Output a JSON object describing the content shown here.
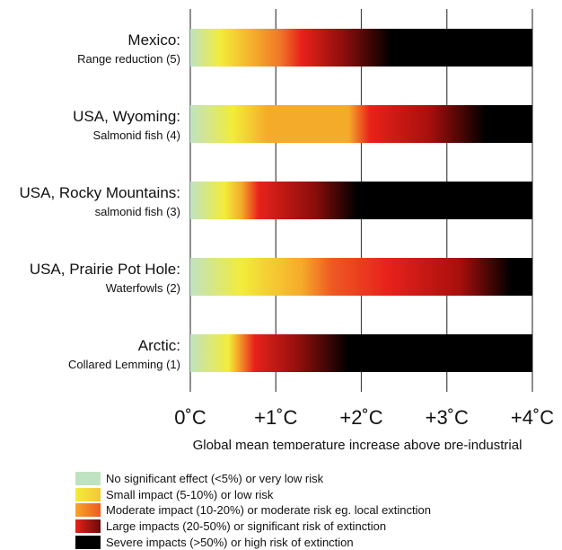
{
  "chart_data": {
    "type": "bar",
    "orientation": "horizontal",
    "title": "",
    "xlabel": "Global mean temperature increase above pre-industrial",
    "xlim": [
      0,
      4
    ],
    "xticks": [
      0,
      1,
      2,
      3,
      4
    ],
    "xtick_labels": [
      "0˚C",
      "+1˚C",
      "+2˚C",
      "+3˚C",
      "+4˚C"
    ],
    "grid": "vertical",
    "categories": [
      {
        "title": "Mexico:",
        "subtitle": "Range reduction (5)"
      },
      {
        "title": "USA, Wyoming:",
        "subtitle": "Salmonid fish (4)"
      },
      {
        "title": "USA, Rocky Mountains:",
        "subtitle": "salmonid fish (3)"
      },
      {
        "title": "USA, Prairie Pot Hole:",
        "subtitle": "Waterfowls (2)"
      },
      {
        "title": "Arctic:",
        "subtitle": "Collared Lemming (1)"
      }
    ],
    "gradient_stops": [
      [
        {
          "temp": 0.0,
          "color": "#bfe3c1"
        },
        {
          "temp": 0.35,
          "color": "#f2ec3a"
        },
        {
          "temp": 0.75,
          "color": "#f5ab2a"
        },
        {
          "temp": 1.05,
          "color": "#f07728"
        },
        {
          "temp": 1.3,
          "color": "#e8221b"
        },
        {
          "temp": 1.8,
          "color": "#8b0e0b"
        },
        {
          "temp": 2.35,
          "color": "#000000"
        },
        {
          "temp": 4.0,
          "color": "#000000"
        }
      ],
      [
        {
          "temp": 0.0,
          "color": "#bfe3c1"
        },
        {
          "temp": 0.5,
          "color": "#f2ec3a"
        },
        {
          "temp": 0.9,
          "color": "#f5ab2a"
        },
        {
          "temp": 1.85,
          "color": "#f5ab2a"
        },
        {
          "temp": 2.1,
          "color": "#e8221b"
        },
        {
          "temp": 2.8,
          "color": "#a80f0c"
        },
        {
          "temp": 3.45,
          "color": "#000000"
        },
        {
          "temp": 4.0,
          "color": "#000000"
        }
      ],
      [
        {
          "temp": 0.0,
          "color": "#bfe3c1"
        },
        {
          "temp": 0.4,
          "color": "#f2ec3a"
        },
        {
          "temp": 0.6,
          "color": "#f5ab2a"
        },
        {
          "temp": 0.8,
          "color": "#e8221b"
        },
        {
          "temp": 1.45,
          "color": "#8b0e0b"
        },
        {
          "temp": 1.95,
          "color": "#000000"
        },
        {
          "temp": 4.0,
          "color": "#000000"
        }
      ],
      [
        {
          "temp": 0.0,
          "color": "#bfe3c1"
        },
        {
          "temp": 0.6,
          "color": "#f2ec3a"
        },
        {
          "temp": 1.3,
          "color": "#f5ab2a"
        },
        {
          "temp": 1.65,
          "color": "#ee5a22"
        },
        {
          "temp": 2.3,
          "color": "#e8221b"
        },
        {
          "temp": 3.15,
          "color": "#a80f0c"
        },
        {
          "temp": 3.75,
          "color": "#000000"
        },
        {
          "temp": 4.0,
          "color": "#000000"
        }
      ],
      [
        {
          "temp": 0.0,
          "color": "#bfe3c1"
        },
        {
          "temp": 0.45,
          "color": "#f2ec3a"
        },
        {
          "temp": 0.55,
          "color": "#f5ab2a"
        },
        {
          "temp": 0.75,
          "color": "#e8221b"
        },
        {
          "temp": 1.3,
          "color": "#8b0e0b"
        },
        {
          "temp": 1.85,
          "color": "#000000"
        },
        {
          "temp": 4.0,
          "color": "#000000"
        }
      ]
    ],
    "legend": [
      {
        "color": "#bfe3c1",
        "color2": "#bfe3c1",
        "label": "No significant effect (<5%) or very low risk"
      },
      {
        "color": "#f2ec3a",
        "color2": "#f5c73a",
        "label": "Small impact (5-10%) or low risk"
      },
      {
        "color": "#f7a52a",
        "color2": "#ee5a22",
        "label": "Moderate impact (10-20%) or moderate risk eg. local extinction"
      },
      {
        "color": "#e8221b",
        "color2": "#6b0a09",
        "label": "Large impacts (20-50%) or significant risk of extinction"
      },
      {
        "color": "#000000",
        "color2": "#000000",
        "label": "Severe impacts (>50%) or high risk of extinction"
      }
    ],
    "legend_position": "bottom-left"
  }
}
